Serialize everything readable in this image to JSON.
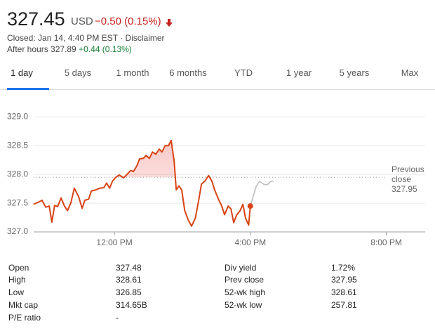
{
  "header": {
    "price": "327.45",
    "currency": "USD",
    "change": "−0.50 (0.15%)",
    "status": "Closed: Jan 14, 4:40 PM EST · ",
    "disclaimer": "Disclaimer",
    "after_hours": "After hours 327.89",
    "after_hours_change": "+0.44 (0.13%)"
  },
  "tabs": [
    "1 day",
    "5 days",
    "1 month",
    "6 months",
    "YTD",
    "1 year",
    "5 years",
    "Max"
  ],
  "chart_data": {
    "type": "line",
    "series": [
      {
        "color": "#d84315",
        "x": [
          9.62,
          9.77,
          9.87,
          9.98,
          10.08,
          10.16,
          10.24,
          10.33,
          10.43,
          10.53,
          10.62,
          10.72,
          10.82,
          10.95,
          11.05,
          11.13,
          11.24,
          11.32,
          11.44,
          11.57,
          11.69,
          11.77,
          11.86,
          11.94,
          12.04,
          12.14,
          12.27,
          12.37,
          12.48,
          12.56,
          12.66,
          12.74,
          12.85,
          12.93,
          13.03,
          13.12,
          13.22,
          13.32,
          13.4,
          13.49,
          13.59,
          13.67,
          13.76,
          13.82,
          13.9,
          13.98,
          14.07,
          14.17,
          14.27,
          14.38,
          14.48,
          14.56,
          14.67,
          14.77,
          14.87,
          14.95,
          15.06,
          15.16,
          15.24,
          15.35,
          15.43,
          15.51,
          15.6,
          15.7,
          15.78,
          15.86,
          15.95,
          16.0
        ],
        "values": [
          327.48,
          327.52,
          327.55,
          327.43,
          327.45,
          327.17,
          327.46,
          327.44,
          327.59,
          327.45,
          327.37,
          327.51,
          327.76,
          327.61,
          327.41,
          327.55,
          327.57,
          327.71,
          327.73,
          327.76,
          327.77,
          327.85,
          327.76,
          327.88,
          327.95,
          327.99,
          327.94,
          328.0,
          328.07,
          328.05,
          328.15,
          328.27,
          328.28,
          328.33,
          328.28,
          328.39,
          328.35,
          328.44,
          328.39,
          328.5,
          328.5,
          328.59,
          328.22,
          327.73,
          327.8,
          327.73,
          327.37,
          327.21,
          327.1,
          327.24,
          327.55,
          327.83,
          327.89,
          327.98,
          327.88,
          327.73,
          327.57,
          327.45,
          327.3,
          327.45,
          327.4,
          327.16,
          327.3,
          327.37,
          327.48,
          327.24,
          327.12,
          327.45
        ]
      },
      {
        "color": "#bdbdbd",
        "x": [
          16.0,
          16.17,
          16.27,
          16.39,
          16.5,
          16.6,
          16.68
        ],
        "values": [
          327.45,
          327.79,
          327.88,
          327.83,
          327.82,
          327.88,
          327.88
        ]
      }
    ],
    "previous_close": {
      "label": "Previous close",
      "value": 327.95
    },
    "xlim": [
      9.5,
      21
    ],
    "ylim": [
      327,
      329.2
    ],
    "xticks": [
      {
        "value": 12,
        "label": "12:00 PM"
      },
      {
        "value": 16,
        "label": "4:00 PM"
      },
      {
        "value": 20,
        "label": "8:00 PM"
      }
    ],
    "yticks": [
      {
        "value": 327,
        "label": "327.0"
      },
      327.5,
      {
        "value": 328,
        "label": "328.0"
      },
      328.5,
      {
        "value": 329,
        "label": "329.0"
      }
    ],
    "grid": true
  },
  "stats": {
    "left": [
      [
        "Open",
        "327.48"
      ],
      [
        "High",
        "328.61"
      ],
      [
        "Low",
        "326.85"
      ],
      [
        "Mkt cap",
        "314.65B"
      ],
      [
        "P/E ratio",
        "-"
      ]
    ],
    "right": [
      [
        "Div yield",
        "1.72%"
      ],
      [
        "Prev close",
        "327.95"
      ],
      [
        "52-wk high",
        "328.61"
      ],
      [
        "52-wk low",
        "257.81"
      ]
    ]
  }
}
